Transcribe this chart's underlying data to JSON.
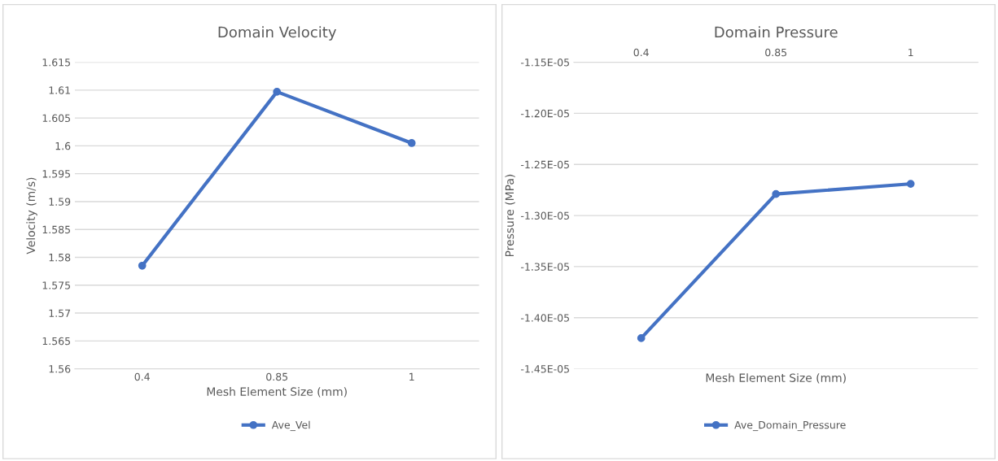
{
  "chart_data": [
    {
      "type": "line",
      "title": "Domain Velocity",
      "xlabel": "Mesh Element Size (mm)",
      "ylabel": "Velocity (m/s)",
      "categories": [
        "0.4",
        "0.85",
        "1"
      ],
      "series": [
        {
          "name": "Ave_Vel",
          "color": "#4472c4",
          "values": [
            1.5785,
            1.6097,
            1.6005
          ]
        }
      ],
      "ylim": [
        1.56,
        1.615
      ],
      "yticks": [
        1.56,
        1.565,
        1.57,
        1.575,
        1.58,
        1.585,
        1.59,
        1.595,
        1.6,
        1.605,
        1.61,
        1.615
      ],
      "grid": "y",
      "legend": "bottom",
      "marker": "circle",
      "line_style": "solid"
    },
    {
      "type": "line",
      "title": "Domain Pressure",
      "xlabel": "Mesh Element Size (mm)",
      "ylabel": "Pressure (MPa)",
      "categories": [
        "0.4",
        "0.85",
        "1"
      ],
      "series": [
        {
          "name": "Ave_Domain_Pressure",
          "color": "#4472c4",
          "values": [
            -1.42e-05,
            -1.279e-05,
            -1.269e-05
          ]
        }
      ],
      "ylim": [
        -1.45e-05,
        -1.15e-05
      ],
      "yticks": [
        {
          "value": -1.45e-05,
          "label": "-1.45E-05"
        },
        {
          "value": -1.4e-05,
          "label": "-1.40E-05"
        },
        {
          "value": -1.35e-05,
          "label": "-1.35E-05"
        },
        {
          "value": -1.3e-05,
          "label": "-1.30E-05"
        },
        {
          "value": -1.25e-05,
          "label": "-1.25E-05"
        },
        {
          "value": -1.2e-05,
          "label": "-1.20E-05"
        },
        {
          "value": -1.15e-05,
          "label": "-1.15E-05"
        }
      ],
      "grid": "y",
      "legend": "bottom",
      "marker": "circle",
      "line_style": "solid"
    }
  ]
}
